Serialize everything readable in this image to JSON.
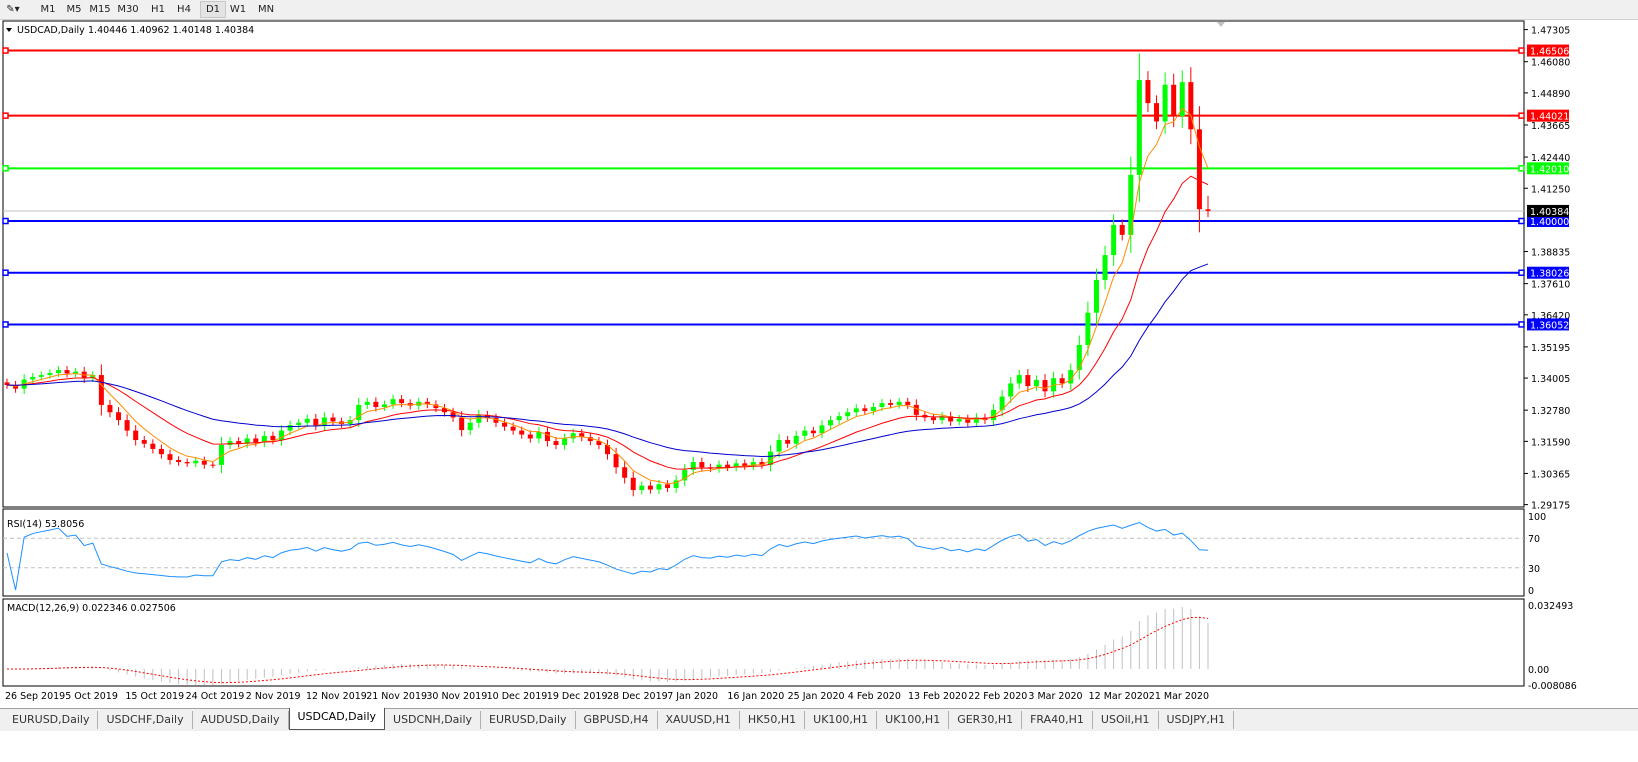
{
  "toolbar": {
    "timeframes": [
      "M1",
      "M5",
      "M15",
      "M30",
      "H1",
      "H4",
      "D1",
      "W1",
      "MN"
    ],
    "active": "D1"
  },
  "header": {
    "symbol": "USDCAD,Daily",
    "ohlc": "1.40446 1.40962 1.40148 1.40384"
  },
  "rsi": {
    "label": "RSI(14) 53.8056",
    "levels": [
      "100",
      "70",
      "30",
      "0"
    ]
  },
  "macd": {
    "label": "MACD(12,26,9) 0.022346 0.027506",
    "levels": [
      "0.032493",
      "0.00",
      "-0.008086"
    ]
  },
  "colors": {
    "bull": "#00ff00",
    "bear": "#ff0000",
    "ma_fast": "#ff8c00",
    "ma_mid": "#ff0000",
    "ma_slow": "#0000cd",
    "rsi": "#1e90ff",
    "macd_signal": "#ff0000",
    "macd_hist": "#c0c0c0"
  },
  "chart_data": {
    "type": "candlestick",
    "symbol": "USDCAD",
    "timeframe": "Daily",
    "ylim": [
      1.29175,
      1.47305
    ],
    "y_ticks": [
      "1.47305",
      "1.46080",
      "1.44890",
      "1.43665",
      "1.42440",
      "1.41250",
      "1.38835",
      "1.37610",
      "1.36420",
      "1.35195",
      "1.34005",
      "1.32780",
      "1.31590",
      "1.30365",
      "1.29175"
    ],
    "x_ticks": [
      "26 Sep 2019",
      "5 Oct 2019",
      "15 Oct 2019",
      "24 Oct 2019",
      "2 Nov 2019",
      "12 Nov 2019",
      "21 Nov 2019",
      "30 Nov 2019",
      "10 Dec 2019",
      "19 Dec 2019",
      "28 Dec 2019",
      "7 Jan 2020",
      "16 Jan 2020",
      "25 Jan 2020",
      "4 Feb 2020",
      "13 Feb 2020",
      "22 Feb 2020",
      "3 Mar 2020",
      "12 Mar 2020",
      "21 Mar 2020"
    ],
    "closes": [
      1.3374,
      1.336,
      1.3395,
      1.3405,
      1.3412,
      1.342,
      1.3431,
      1.3418,
      1.3425,
      1.34,
      1.3412,
      1.3298,
      1.327,
      1.324,
      1.32,
      1.3164,
      1.315,
      1.313,
      1.311,
      1.3088,
      1.308,
      1.3075,
      1.3085,
      1.307,
      1.3069,
      1.3145,
      1.316,
      1.315,
      1.317,
      1.3155,
      1.318,
      1.3164,
      1.32,
      1.3221,
      1.323,
      1.3245,
      1.322,
      1.325,
      1.3235,
      1.3225,
      1.324,
      1.3298,
      1.331,
      1.329,
      1.33,
      1.332,
      1.3305,
      1.3295,
      1.331,
      1.33,
      1.3286,
      1.327,
      1.325,
      1.3202,
      1.323,
      1.326,
      1.3248,
      1.323,
      1.3215,
      1.32,
      1.3185,
      1.317,
      1.3195,
      1.316,
      1.3145,
      1.317,
      1.319,
      1.3175,
      1.316,
      1.3145,
      1.311,
      1.306,
      1.302,
      1.2973,
      1.299,
      1.2975,
      1.2995,
      1.2981,
      1.301,
      1.305,
      1.308,
      1.306,
      1.3055,
      1.307,
      1.306,
      1.3075,
      1.3065,
      1.308,
      1.3069,
      1.312,
      1.3164,
      1.315,
      1.318,
      1.32,
      1.319,
      1.322,
      1.324,
      1.3255,
      1.327,
      1.3285,
      1.3275,
      1.329,
      1.3305,
      1.3298,
      1.331,
      1.3298,
      1.326,
      1.325,
      1.324,
      1.3255,
      1.3235,
      1.3245,
      1.323,
      1.325,
      1.324,
      1.3279,
      1.333,
      1.338,
      1.3412,
      1.337,
      1.3393,
      1.335,
      1.34,
      1.338,
      1.3431,
      1.3527,
      1.365,
      1.3775,
      1.387,
      1.3985,
      1.3947,
      1.4176,
      1.4538,
      1.445,
      1.438,
      1.452,
      1.44,
      1.453,
      1.435,
      1.4045,
      1.40384
    ],
    "last_bar": {
      "open": 1.40446,
      "high": 1.40962,
      "low": 1.40148,
      "close": 1.40384
    },
    "moving_averages": [
      "fast (orange)",
      "medium (red)",
      "slow (blue)"
    ],
    "horizontal_lines": [
      {
        "price": "1.46506",
        "color": "#ff0000"
      },
      {
        "price": "1.44021",
        "color": "#ff0000"
      },
      {
        "price": "1.42010",
        "color": "#00ff00"
      },
      {
        "price": "1.40000",
        "color": "#0000ff"
      },
      {
        "price": "1.38026",
        "color": "#0000ff"
      },
      {
        "price": "1.36052",
        "color": "#0000ff"
      }
    ],
    "bid_line": {
      "price": "1.40384"
    }
  },
  "tabs": [
    "EURUSD,Daily",
    "USDCHF,Daily",
    "AUDUSD,Daily",
    "USDCAD,Daily",
    "USDCNH,Daily",
    "EURUSD,Daily",
    "GBPUSD,H4",
    "XAUUSD,H1",
    "HK50,H1",
    "UK100,H1",
    "UK100,H1",
    "GER30,H1",
    "FRA40,H1",
    "USOil,H1",
    "USDJPY,H1"
  ],
  "active_tab": "USDCAD,Daily"
}
